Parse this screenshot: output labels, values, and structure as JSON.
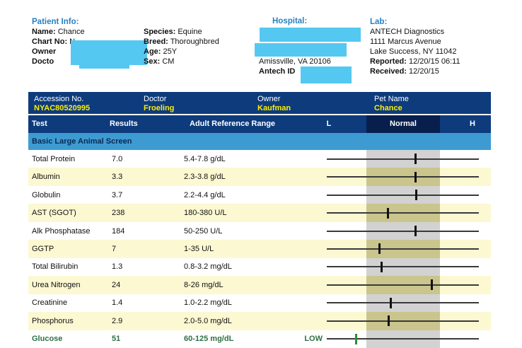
{
  "patient": {
    "heading": "Patient Info:",
    "lines": [
      {
        "label": "Name:",
        "value": "Chance"
      },
      {
        "label": "Chart No:",
        "value": "N"
      },
      {
        "label": "Owner",
        "value": ""
      },
      {
        "label": "Docto",
        "value": ""
      }
    ]
  },
  "signalment": {
    "lines": [
      {
        "label": "Species:",
        "value": "Equine"
      },
      {
        "label": "Breed:",
        "value": "Thoroughbred"
      },
      {
        "label": "Age:",
        "value": "25Y"
      },
      {
        "label": "Sex:",
        "value": "CM"
      }
    ]
  },
  "hospital": {
    "heading": "Hospital:",
    "city_line": "Amissville, VA 20106",
    "antech_id_label": "Antech ID"
  },
  "lab": {
    "heading": "Lab:",
    "name": "ANTECH Diagnostics",
    "address1": "1111 Marcus Avenue",
    "address2": "Lake Success, NY 11042",
    "reported_label": "Reported:",
    "reported_value": "12/20/15 06:11",
    "received_label": "Received:",
    "received_value": "12/20/15"
  },
  "accession_bar": {
    "columns": [
      {
        "label": "Accession No.",
        "value": "NYAC80520995"
      },
      {
        "label": "Doctor",
        "value": "Froeling"
      },
      {
        "label": "Owner",
        "value": "Kaufman"
      },
      {
        "label": "Pet Name",
        "value": "Chance"
      }
    ]
  },
  "table": {
    "headers": {
      "test": "Test",
      "results": "Results",
      "range": "Adult Reference Range",
      "low": "L",
      "normal": "Normal",
      "high": "H"
    },
    "section_title": "Basic Large Animal Screen",
    "rows": [
      {
        "test": "Total Protein",
        "result": "7.0",
        "range": "5.4-7.8 g/dL",
        "low": 5.4,
        "high": 7.8,
        "value": 7.0,
        "flag": "",
        "status": "normal"
      },
      {
        "test": "Albumin",
        "result": "3.3",
        "range": "2.3-3.8 g/dL",
        "low": 2.3,
        "high": 3.8,
        "value": 3.3,
        "flag": "",
        "status": "normal"
      },
      {
        "test": "Globulin",
        "result": "3.7",
        "range": "2.2-4.4 g/dL",
        "low": 2.2,
        "high": 4.4,
        "value": 3.7,
        "flag": "",
        "status": "normal"
      },
      {
        "test": "AST (SGOT)",
        "result": "238",
        "range": "180-380 U/L",
        "low": 180,
        "high": 380,
        "value": 238,
        "flag": "",
        "status": "normal"
      },
      {
        "test": "Alk Phosphatase",
        "result": "184",
        "range": "50-250 U/L",
        "low": 50,
        "high": 250,
        "value": 184,
        "flag": "",
        "status": "normal"
      },
      {
        "test": "GGTP",
        "result": "7",
        "range": "1-35 U/L",
        "low": 1,
        "high": 35,
        "value": 7,
        "flag": "",
        "status": "normal"
      },
      {
        "test": "Total Bilirubin",
        "result": "1.3",
        "range": "0.8-3.2 mg/dL",
        "low": 0.8,
        "high": 3.2,
        "value": 1.3,
        "flag": "",
        "status": "normal"
      },
      {
        "test": "Urea Nitrogen",
        "result": "24",
        "range": "8-26 mg/dL",
        "low": 8,
        "high": 26,
        "value": 24,
        "flag": "",
        "status": "normal"
      },
      {
        "test": "Creatinine",
        "result": "1.4",
        "range": "1.0-2.2 mg/dL",
        "low": 1.0,
        "high": 2.2,
        "value": 1.4,
        "flag": "",
        "status": "normal"
      },
      {
        "test": "Phosphorus",
        "result": "2.9",
        "range": "2.0-5.0 mg/dL",
        "low": 2.0,
        "high": 5.0,
        "value": 2.9,
        "flag": "",
        "status": "normal"
      },
      {
        "test": "Glucose",
        "result": "51",
        "range": "60-125 mg/dL",
        "low": 60,
        "high": 125,
        "value": 51,
        "flag": "LOW",
        "status": "low"
      }
    ]
  },
  "colors": {
    "header_navy": "#0d3b7c",
    "normal_header_box": "#081f4d",
    "section_bar_blue": "#3d9bd2",
    "row_stripe_yellow": "#fcf8d2",
    "normal_band_gray": "#d2d2d2",
    "normal_band_on_yellow": "#c9c58c",
    "accession_value_yellow": "#ffee00",
    "info_heading_blue": "#2581c4",
    "redaction_cyan": "#55c8f2",
    "low_result_green": "#2f6f44"
  }
}
